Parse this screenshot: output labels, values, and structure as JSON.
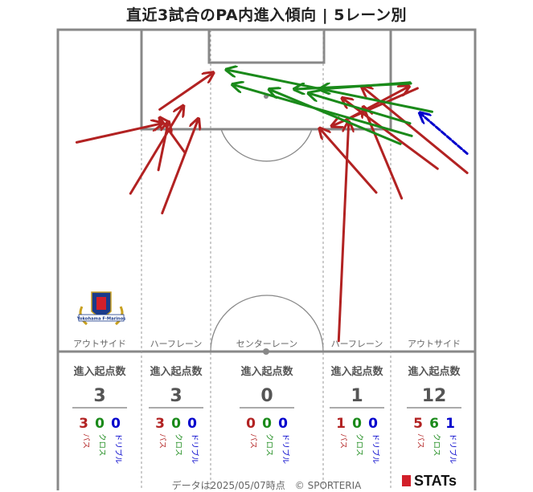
{
  "title": "直近3試合のPA内進入傾向 | 5レーン別",
  "lanes": [
    {
      "label": "アウトサイド",
      "header": "進入起点数",
      "total": "3",
      "pass": "3",
      "cross": "0",
      "dribble": "0"
    },
    {
      "label": "ハーフレーン",
      "header": "進入起点数",
      "total": "3",
      "pass": "3",
      "cross": "0",
      "dribble": "0"
    },
    {
      "label": "センターレーン",
      "header": "進入起点数",
      "total": "0",
      "pass": "0",
      "cross": "0",
      "dribble": "0"
    },
    {
      "label": "ハーフレーン",
      "header": "進入起点数",
      "total": "1",
      "pass": "1",
      "cross": "0",
      "dribble": "0"
    },
    {
      "label": "アウトサイド",
      "header": "進入起点数",
      "total": "12",
      "pass": "5",
      "cross": "6",
      "dribble": "1"
    }
  ],
  "legend": {
    "pass": "パス",
    "cross": "クロス",
    "dribble": "ドリブル"
  },
  "colors": {
    "pass": "#b22222",
    "cross": "#1a8a1a",
    "dribble": "#0000cc",
    "lines": "#888888"
  },
  "footer": "データは2025/05/07時点　© SPORTERIA",
  "brand": "STATs",
  "logo": {
    "name": "crest-icon",
    "text": "Yokohama F·Marinos"
  },
  "chart_data": {
    "type": "arrow-map",
    "pitch_coords": "x: 0 (left touchline) to 100 (right touchline); y: 0 (attacking goal line) to 100 (halfway line)",
    "series": [
      {
        "name": "パス",
        "color": "#b22222",
        "arrows": [
          {
            "from": [
              4.5,
              35.0
            ],
            "to": [
              25.0,
              29.1
            ]
          },
          {
            "from": [
              17.4,
              50.9
            ],
            "to": [
              30.1,
              23.6
            ]
          },
          {
            "from": [
              30.5,
              38.3
            ],
            "to": [
              24.4,
              27.3
            ]
          },
          {
            "from": [
              24.1,
              43.6
            ],
            "to": [
              26.5,
              28.5
            ]
          },
          {
            "from": [
              25.0,
              57.0
            ],
            "to": [
              33.7,
              27.6
            ]
          },
          {
            "from": [
              24.4,
              24.8
            ],
            "to": [
              37.3,
              13.3
            ]
          },
          {
            "from": [
              67.3,
              96.7
            ],
            "to": [
              69.7,
              28.5
            ]
          },
          {
            "from": [
              76.3,
              50.6
            ],
            "to": [
              62.7,
              30.6
            ]
          },
          {
            "from": [
              69.3,
              27.9
            ],
            "to": [
              84.2,
              17.6
            ]
          },
          {
            "from": [
              82.4,
              52.4
            ],
            "to": [
              73.2,
              23.9
            ]
          },
          {
            "from": [
              91.0,
              43.2
            ],
            "to": [
              68.1,
              21.2
            ]
          },
          {
            "from": [
              98.1,
              44.5
            ],
            "to": [
              72.8,
              17.6
            ]
          },
          {
            "from": [
              86.2,
              18.2
            ],
            "to": [
              65.6,
              30.0
            ]
          }
        ]
      },
      {
        "name": "クロス",
        "color": "#1a8a1a",
        "arrows": [
          {
            "from": [
              89.7,
              25.5
            ],
            "to": [
              40.3,
              12.4
            ]
          },
          {
            "from": [
              84.8,
              33.0
            ],
            "to": [
              41.8,
              17.0
            ]
          },
          {
            "from": [
              82.1,
              35.5
            ],
            "to": [
              50.6,
              18.5
            ]
          },
          {
            "from": [
              84.4,
              29.1
            ],
            "to": [
              60.0,
              19.7
            ]
          },
          {
            "from": [
              84.6,
              16.7
            ],
            "to": [
              56.6,
              18.5
            ]
          },
          {
            "from": [
              84.4,
              16.4
            ],
            "to": [
              62.7,
              18.5
            ]
          }
        ]
      },
      {
        "name": "ドリブル",
        "color": "#0000cc",
        "arrows": [
          {
            "from": [
              98.1,
              38.5
            ],
            "to": [
              86.7,
              25.8
            ]
          }
        ]
      }
    ],
    "lane_counts": {
      "categories": [
        "アウトサイド",
        "ハーフレーン",
        "センターレーン",
        "ハーフレーン",
        "アウトサイド"
      ],
      "totals": [
        3,
        3,
        0,
        1,
        12
      ],
      "pass": [
        3,
        3,
        0,
        1,
        5
      ],
      "cross": [
        0,
        0,
        0,
        0,
        6
      ],
      "dribble": [
        0,
        0,
        0,
        0,
        1
      ]
    }
  }
}
